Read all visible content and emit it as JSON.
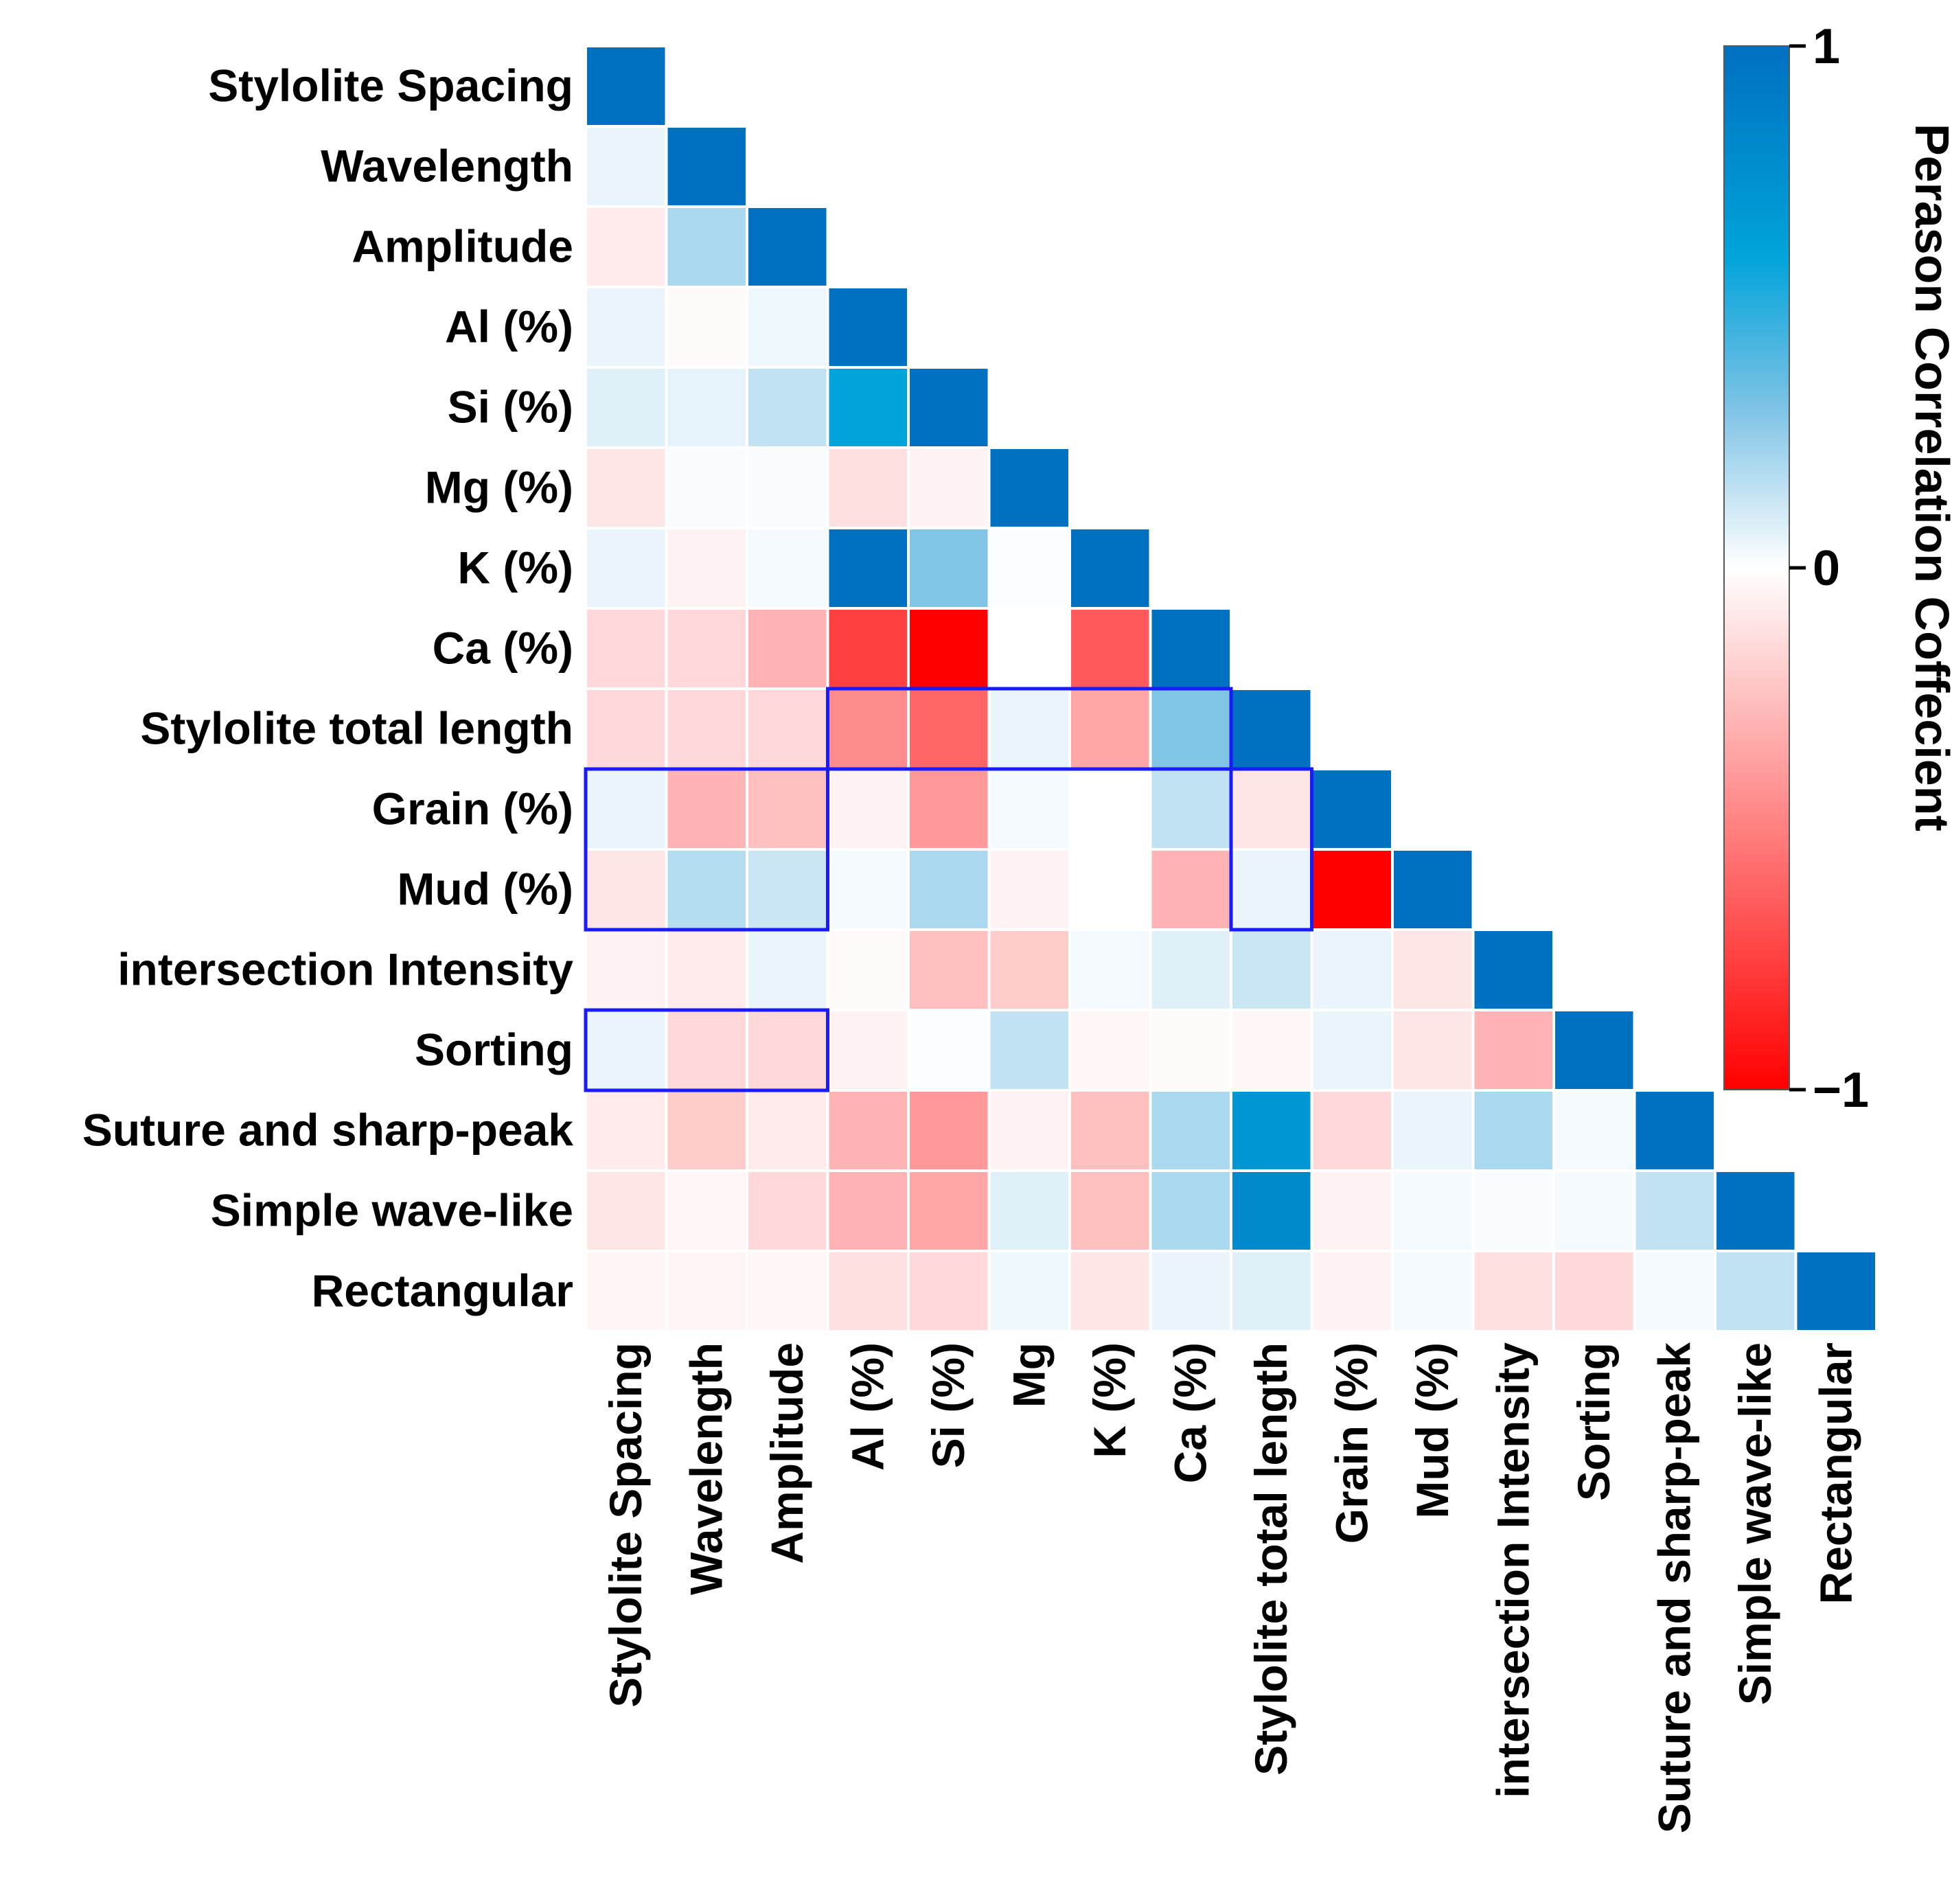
{
  "chart_data": {
    "type": "heatmap",
    "title": "",
    "variables": [
      "Stylolite Spacing",
      "Wavelength",
      "Amplitude",
      "Al (%)",
      "Si (%)",
      "Mg (%)",
      "K (%)",
      "Ca (%)",
      "Stylolite total length",
      "Grain (%)",
      "Mud (%)",
      "intersection Intensity",
      "Sorting",
      "Suture and sharp-peak",
      "Simple wave-like",
      "Rectangular"
    ],
    "column_labels": [
      "Stylolite Spacing",
      "Wavelength",
      "Amplitude",
      "Al (%)",
      "Si (%)",
      "Mg",
      "K (%)",
      "Ca (%)",
      "Stylolite total length",
      "Grain (%)",
      "Mud (%)",
      "intersection Intensity",
      "Sorting",
      "Suture and sharp-peak",
      "Simple wave-like",
      "Rectangular"
    ],
    "matrix_lower_triangle": [
      [
        1
      ],
      [
        0.1,
        1
      ],
      [
        -0.08,
        0.4,
        1
      ],
      [
        0.1,
        -0.02,
        0.08,
        1
      ],
      [
        0.15,
        0.12,
        0.3,
        0.8,
        1
      ],
      [
        -0.1,
        0.03,
        0.03,
        -0.12,
        -0.05,
        1
      ],
      [
        0.1,
        -0.05,
        0.05,
        1.0,
        0.6,
        0.02,
        1
      ],
      [
        -0.15,
        -0.15,
        -0.3,
        -0.75,
        -1.0,
        0.0,
        -0.65,
        1
      ],
      [
        -0.15,
        -0.15,
        -0.15,
        -0.45,
        -0.6,
        0.1,
        -0.35,
        0.6,
        1
      ],
      [
        0.1,
        -0.3,
        -0.25,
        -0.05,
        -0.4,
        0.05,
        0.0,
        0.3,
        -0.1,
        1
      ],
      [
        -0.1,
        0.35,
        0.25,
        0.05,
        0.4,
        -0.05,
        0.0,
        -0.3,
        0.1,
        -1.0,
        1
      ],
      [
        -0.05,
        -0.08,
        0.1,
        -0.02,
        -0.25,
        -0.2,
        0.05,
        0.15,
        0.25,
        0.1,
        -0.1,
        1
      ],
      [
        0.1,
        -0.15,
        -0.15,
        -0.05,
        0.02,
        0.3,
        -0.03,
        -0.02,
        -0.03,
        0.1,
        -0.1,
        -0.3,
        1
      ],
      [
        -0.08,
        -0.2,
        -0.08,
        -0.3,
        -0.4,
        -0.05,
        -0.25,
        0.4,
        0.85,
        -0.15,
        0.1,
        0.4,
        0.05,
        1
      ],
      [
        -0.1,
        -0.03,
        -0.15,
        -0.3,
        -0.35,
        0.15,
        -0.25,
        0.4,
        0.9,
        -0.05,
        0.05,
        0.03,
        0.05,
        0.3,
        1
      ],
      [
        -0.04,
        -0.04,
        -0.03,
        -0.12,
        -0.15,
        0.08,
        -0.1,
        0.1,
        0.15,
        -0.05,
        0.05,
        -0.12,
        -0.15,
        0.05,
        0.3,
        1
      ]
    ],
    "highlight_boxes": [
      {
        "rows": [
          8,
          8
        ],
        "cols": [
          3,
          7
        ]
      },
      {
        "rows": [
          9,
          10
        ],
        "cols": [
          0,
          2
        ]
      },
      {
        "rows": [
          9,
          10
        ],
        "cols": [
          8,
          8
        ]
      },
      {
        "rows": [
          12,
          12
        ],
        "cols": [
          0,
          2
        ]
      }
    ],
    "colorbar": {
      "label": "Perason Correlation Coffecient",
      "range": [
        -1,
        1
      ],
      "ticks": [
        {
          "value": 1,
          "label": "1"
        },
        {
          "value": 0,
          "label": "0"
        },
        {
          "value": -1,
          "label": "−1"
        }
      ],
      "colors": {
        "pos_max": "#0070c0",
        "pos_mid": "#00a3da",
        "pos_low": "#80c4e6",
        "zero": "#ffffff",
        "neg_max": "#ff0000"
      }
    },
    "highlight_color": "#1a1aff"
  }
}
